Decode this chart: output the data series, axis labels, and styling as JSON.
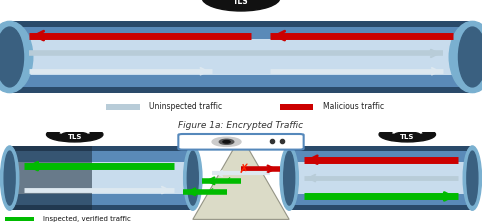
{
  "bg_top": "#a0a0a0",
  "bg_white": "#ffffff",
  "bg_bottom": "#7a7a7a",
  "tunnel_outer": "#4a7aaa",
  "tunnel_inner_light": "#8ab4d8",
  "tunnel_inner_mid": "#5a8ab8",
  "tunnel_inner_center": "#c8dced",
  "tunnel_dark_edge": "#2a4a6a",
  "cap_color": "#7ab0d0",
  "cap_dark": "#3a6080",
  "lock_bg": "#111111",
  "lock_white": "#ffffff",
  "red": "#cc0000",
  "gray_arrow": "#b8ccd8",
  "white_arrow": "#dde8f0",
  "green": "#00bb00",
  "title": "Figure 1a: Encrypted Traffic",
  "legend_uninspected": "Uninspected traffic",
  "legend_malicious": "Malicious traffic",
  "legend_inspected": "Inspected, verified traffic"
}
